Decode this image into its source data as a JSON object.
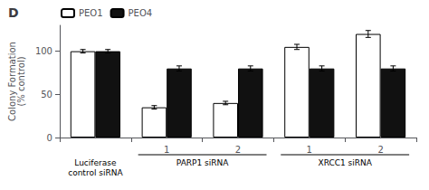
{
  "chart_data": {
    "type": "bar",
    "title": "D",
    "categories": [
      null,
      "1",
      "2",
      "1",
      "2"
    ],
    "series": [
      {
        "name": "PEO1",
        "color": "#ffffff",
        "values": [
          100,
          35,
          40,
          105,
          120
        ],
        "errors": [
          2,
          2,
          2,
          3,
          4
        ]
      },
      {
        "name": "PEO4",
        "color": "#111111",
        "values": [
          100,
          80,
          80,
          80,
          80
        ],
        "errors": [
          2,
          3,
          3,
          3,
          3
        ]
      }
    ],
    "ylabel": "Colony Formation\n(% control)",
    "ylim": [
      0,
      130
    ],
    "yticks": [
      0,
      50,
      100
    ],
    "annotations": [
      "Luciferase\ncontrol siRNA",
      "PARP1 siRNA",
      "XRCC1 siRNA"
    ],
    "grid": false,
    "legend": "upper left"
  }
}
